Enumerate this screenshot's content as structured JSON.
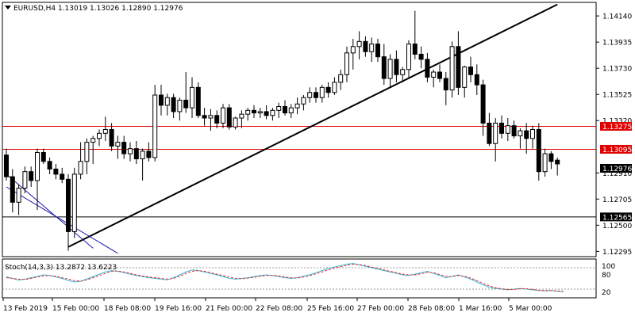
{
  "header": {
    "symbol_line": "EURUSD,H4  1.13019 1.13026 1.12890 1.12976"
  },
  "price_axis": {
    "ticks": [
      "1.14140",
      "1.13935",
      "1.13730",
      "1.13525",
      "1.13320",
      "1.12910",
      "1.12705",
      "1.12500",
      "1.12295"
    ]
  },
  "horizontal_lines": [
    {
      "price": 1.13275,
      "label": "1.13275",
      "color": "#e00000"
    },
    {
      "price": 1.13095,
      "label": "1.13095",
      "color": "#e00000"
    },
    {
      "price": 1.12565,
      "label": "1.12565",
      "color": "#000000"
    }
  ],
  "current_price_label": "1.12976",
  "oscillator": {
    "title": "Stoch(14,3,3) 13.2872 13.6223",
    "level_high": "80",
    "level_100": "100",
    "level_low": "20"
  },
  "time_axis": {
    "labels": [
      "13 Feb 2019",
      "15 Feb 00:00",
      "18 Feb 08:00",
      "19 Feb 16:00",
      "21 Feb 00:00",
      "22 Feb 08:00",
      "25 Feb 16:00",
      "27 Feb 00:00",
      "28 Feb 08:00",
      "1 Mar 16:00",
      "5 Mar 00:00"
    ]
  },
  "chart_data": {
    "type": "candlestick",
    "symbol": "EURUSD",
    "timeframe": "H4",
    "ohlc_header": {
      "open": 1.13019,
      "high": 1.13026,
      "low": 1.1289,
      "close": 1.12976
    },
    "ylim": [
      1.1226,
      1.1424
    ],
    "candles": [
      {
        "o": 1.1305,
        "h": 1.131,
        "l": 1.1285,
        "c": 1.1288
      },
      {
        "o": 1.1288,
        "h": 1.1294,
        "l": 1.126,
        "c": 1.1268
      },
      {
        "o": 1.1268,
        "h": 1.1282,
        "l": 1.1258,
        "c": 1.1279
      },
      {
        "o": 1.1279,
        "h": 1.1296,
        "l": 1.1275,
        "c": 1.1292
      },
      {
        "o": 1.1292,
        "h": 1.1296,
        "l": 1.128,
        "c": 1.1285
      },
      {
        "o": 1.1285,
        "h": 1.131,
        "l": 1.1262,
        "c": 1.1307
      },
      {
        "o": 1.1307,
        "h": 1.131,
        "l": 1.1298,
        "c": 1.13
      },
      {
        "o": 1.13,
        "h": 1.1303,
        "l": 1.129,
        "c": 1.1294
      },
      {
        "o": 1.1294,
        "h": 1.1298,
        "l": 1.1286,
        "c": 1.129
      },
      {
        "o": 1.129,
        "h": 1.1295,
        "l": 1.1283,
        "c": 1.1286
      },
      {
        "o": 1.1286,
        "h": 1.129,
        "l": 1.123,
        "c": 1.1245
      },
      {
        "o": 1.1245,
        "h": 1.1295,
        "l": 1.124,
        "c": 1.129
      },
      {
        "o": 1.129,
        "h": 1.1315,
        "l": 1.1286,
        "c": 1.13
      },
      {
        "o": 1.13,
        "h": 1.1318,
        "l": 1.129,
        "c": 1.1315
      },
      {
        "o": 1.1315,
        "h": 1.132,
        "l": 1.1298,
        "c": 1.1318
      },
      {
        "o": 1.1318,
        "h": 1.1325,
        "l": 1.1312,
        "c": 1.1322
      },
      {
        "o": 1.1322,
        "h": 1.1335,
        "l": 1.1316,
        "c": 1.1325
      },
      {
        "o": 1.1325,
        "h": 1.133,
        "l": 1.1308,
        "c": 1.1312
      },
      {
        "o": 1.1312,
        "h": 1.132,
        "l": 1.1302,
        "c": 1.1315
      },
      {
        "o": 1.1315,
        "h": 1.132,
        "l": 1.1302,
        "c": 1.1306
      },
      {
        "o": 1.1306,
        "h": 1.1315,
        "l": 1.13,
        "c": 1.131
      },
      {
        "o": 1.131,
        "h": 1.1316,
        "l": 1.1298,
        "c": 1.1302
      },
      {
        "o": 1.1302,
        "h": 1.131,
        "l": 1.1285,
        "c": 1.1308
      },
      {
        "o": 1.1308,
        "h": 1.1315,
        "l": 1.13,
        "c": 1.1303
      },
      {
        "o": 1.1303,
        "h": 1.136,
        "l": 1.13,
        "c": 1.1352
      },
      {
        "o": 1.1352,
        "h": 1.136,
        "l": 1.1336,
        "c": 1.1344
      },
      {
        "o": 1.1344,
        "h": 1.1353,
        "l": 1.1336,
        "c": 1.135
      },
      {
        "o": 1.135,
        "h": 1.1353,
        "l": 1.1334,
        "c": 1.1339
      },
      {
        "o": 1.1339,
        "h": 1.135,
        "l": 1.1332,
        "c": 1.1348
      },
      {
        "o": 1.1348,
        "h": 1.137,
        "l": 1.1338,
        "c": 1.1342
      },
      {
        "o": 1.1342,
        "h": 1.1366,
        "l": 1.1334,
        "c": 1.1358
      },
      {
        "o": 1.1358,
        "h": 1.1362,
        "l": 1.1334,
        "c": 1.1336
      },
      {
        "o": 1.1336,
        "h": 1.1342,
        "l": 1.1328,
        "c": 1.1334
      },
      {
        "o": 1.1334,
        "h": 1.1341,
        "l": 1.1324,
        "c": 1.1336
      },
      {
        "o": 1.1336,
        "h": 1.134,
        "l": 1.1326,
        "c": 1.133
      },
      {
        "o": 1.133,
        "h": 1.1345,
        "l": 1.1326,
        "c": 1.1342
      },
      {
        "o": 1.1342,
        "h": 1.1345,
        "l": 1.1325,
        "c": 1.1327
      },
      {
        "o": 1.1327,
        "h": 1.1335,
        "l": 1.1325,
        "c": 1.1334
      },
      {
        "o": 1.1334,
        "h": 1.134,
        "l": 1.1326,
        "c": 1.1337
      },
      {
        "o": 1.1337,
        "h": 1.1342,
        "l": 1.1332,
        "c": 1.134
      },
      {
        "o": 1.134,
        "h": 1.1344,
        "l": 1.1334,
        "c": 1.1338
      },
      {
        "o": 1.1338,
        "h": 1.1342,
        "l": 1.1334,
        "c": 1.1339
      },
      {
        "o": 1.1339,
        "h": 1.1344,
        "l": 1.1333,
        "c": 1.1336
      },
      {
        "o": 1.1336,
        "h": 1.1342,
        "l": 1.1332,
        "c": 1.134
      },
      {
        "o": 1.134,
        "h": 1.1346,
        "l": 1.1334,
        "c": 1.1343
      },
      {
        "o": 1.1343,
        "h": 1.1348,
        "l": 1.1336,
        "c": 1.1338
      },
      {
        "o": 1.1338,
        "h": 1.1345,
        "l": 1.1334,
        "c": 1.1342
      },
      {
        "o": 1.1342,
        "h": 1.135,
        "l": 1.1337,
        "c": 1.1345
      },
      {
        "o": 1.1345,
        "h": 1.1352,
        "l": 1.134,
        "c": 1.135
      },
      {
        "o": 1.135,
        "h": 1.1358,
        "l": 1.1346,
        "c": 1.1354
      },
      {
        "o": 1.1354,
        "h": 1.1358,
        "l": 1.1346,
        "c": 1.135
      },
      {
        "o": 1.135,
        "h": 1.136,
        "l": 1.1346,
        "c": 1.1358
      },
      {
        "o": 1.1358,
        "h": 1.1362,
        "l": 1.135,
        "c": 1.1354
      },
      {
        "o": 1.1354,
        "h": 1.1366,
        "l": 1.1352,
        "c": 1.1362
      },
      {
        "o": 1.1362,
        "h": 1.1372,
        "l": 1.1356,
        "c": 1.1368
      },
      {
        "o": 1.1368,
        "h": 1.139,
        "l": 1.1362,
        "c": 1.1385
      },
      {
        "o": 1.1385,
        "h": 1.1396,
        "l": 1.1372,
        "c": 1.139
      },
      {
        "o": 1.139,
        "h": 1.1402,
        "l": 1.138,
        "c": 1.1394
      },
      {
        "o": 1.1394,
        "h": 1.1398,
        "l": 1.1382,
        "c": 1.1386
      },
      {
        "o": 1.1386,
        "h": 1.1397,
        "l": 1.1378,
        "c": 1.1392
      },
      {
        "o": 1.1392,
        "h": 1.1396,
        "l": 1.1378,
        "c": 1.1382
      },
      {
        "o": 1.1382,
        "h": 1.1392,
        "l": 1.136,
        "c": 1.1365
      },
      {
        "o": 1.1365,
        "h": 1.1384,
        "l": 1.1358,
        "c": 1.138
      },
      {
        "o": 1.138,
        "h": 1.1387,
        "l": 1.1362,
        "c": 1.1368
      },
      {
        "o": 1.1368,
        "h": 1.1374,
        "l": 1.1362,
        "c": 1.1372
      },
      {
        "o": 1.1372,
        "h": 1.1395,
        "l": 1.1366,
        "c": 1.1392
      },
      {
        "o": 1.1392,
        "h": 1.1418,
        "l": 1.138,
        "c": 1.1384
      },
      {
        "o": 1.1384,
        "h": 1.139,
        "l": 1.1373,
        "c": 1.138
      },
      {
        "o": 1.138,
        "h": 1.1385,
        "l": 1.1362,
        "c": 1.1366
      },
      {
        "o": 1.1366,
        "h": 1.1372,
        "l": 1.1358,
        "c": 1.137
      },
      {
        "o": 1.137,
        "h": 1.1376,
        "l": 1.1362,
        "c": 1.1365
      },
      {
        "o": 1.1365,
        "h": 1.137,
        "l": 1.1344,
        "c": 1.1356
      },
      {
        "o": 1.1356,
        "h": 1.1394,
        "l": 1.135,
        "c": 1.139
      },
      {
        "o": 1.139,
        "h": 1.1402,
        "l": 1.1352,
        "c": 1.1358
      },
      {
        "o": 1.1358,
        "h": 1.1375,
        "l": 1.135,
        "c": 1.1374
      },
      {
        "o": 1.1374,
        "h": 1.1382,
        "l": 1.1362,
        "c": 1.1368
      },
      {
        "o": 1.1368,
        "h": 1.1376,
        "l": 1.1352,
        "c": 1.136
      },
      {
        "o": 1.136,
        "h": 1.1364,
        "l": 1.132,
        "c": 1.133
      },
      {
        "o": 1.133,
        "h": 1.1338,
        "l": 1.1312,
        "c": 1.1314
      },
      {
        "o": 1.1314,
        "h": 1.1334,
        "l": 1.13,
        "c": 1.133
      },
      {
        "o": 1.133,
        "h": 1.1336,
        "l": 1.1318,
        "c": 1.1322
      },
      {
        "o": 1.1322,
        "h": 1.1334,
        "l": 1.1316,
        "c": 1.1328
      },
      {
        "o": 1.1328,
        "h": 1.1332,
        "l": 1.1318,
        "c": 1.132
      },
      {
        "o": 1.132,
        "h": 1.1326,
        "l": 1.131,
        "c": 1.1324
      },
      {
        "o": 1.1324,
        "h": 1.133,
        "l": 1.1306,
        "c": 1.1318
      },
      {
        "o": 1.1318,
        "h": 1.1328,
        "l": 1.131,
        "c": 1.1325
      },
      {
        "o": 1.1325,
        "h": 1.133,
        "l": 1.1285,
        "c": 1.1292
      },
      {
        "o": 1.1292,
        "h": 1.131,
        "l": 1.1288,
        "c": 1.1306
      },
      {
        "o": 1.1306,
        "h": 1.1308,
        "l": 1.1294,
        "c": 1.13
      },
      {
        "o": 1.1301,
        "h": 1.1303,
        "l": 1.1289,
        "c": 1.1298
      }
    ],
    "trend_lines": [
      {
        "from": [
          10,
          1.1233
        ],
        "to": [
          89,
          1.1423
        ],
        "color": "#000000"
      },
      {
        "from": [
          0,
          1.128
        ],
        "to": [
          18,
          1.1228
        ],
        "color": "#1a1aa6"
      },
      {
        "from": [
          0,
          1.129
        ],
        "to": [
          14,
          1.1232
        ],
        "color": "#1a1aa6"
      }
    ],
    "stochastic": {
      "main_color": "#39b4d6",
      "signal_color": "#e03030",
      "main": [
        55,
        50,
        45,
        48,
        52,
        56,
        60,
        58,
        54,
        50,
        44,
        40,
        42,
        48,
        55,
        62,
        68,
        72,
        70,
        66,
        62,
        58,
        55,
        52,
        50,
        48,
        46,
        52,
        60,
        68,
        74,
        72,
        68,
        64,
        60,
        55,
        50,
        48,
        50,
        52,
        55,
        58,
        60,
        58,
        55,
        52,
        50,
        52,
        56,
        60,
        66,
        72,
        78,
        82,
        86,
        90,
        92,
        88,
        84,
        80,
        76,
        72,
        68,
        64,
        60,
        58,
        62,
        66,
        70,
        64,
        58,
        52,
        56,
        60,
        54,
        48,
        40,
        32,
        25,
        22,
        20,
        18,
        20,
        22,
        20,
        18,
        16,
        15,
        16,
        14,
        13
      ],
      "signal": [
        52,
        50,
        48,
        47,
        50,
        54,
        57,
        58,
        56,
        52,
        48,
        44,
        42,
        46,
        52,
        58,
        64,
        70,
        71,
        68,
        64,
        60,
        57,
        54,
        52,
        50,
        48,
        50,
        56,
        64,
        70,
        72,
        70,
        66,
        62,
        58,
        54,
        50,
        49,
        51,
        53,
        56,
        58,
        59,
        57,
        54,
        52,
        51,
        54,
        58,
        63,
        68,
        74,
        79,
        83,
        87,
        90,
        89,
        86,
        82,
        78,
        74,
        70,
        66,
        62,
        60,
        60,
        63,
        67,
        66,
        61,
        56,
        55,
        58,
        56,
        51,
        44,
        36,
        29,
        24,
        21,
        19,
        19,
        21,
        21,
        19,
        17,
        16,
        16,
        15,
        13.6
      ]
    },
    "stochastic_ylim": [
      0,
      100
    ]
  }
}
